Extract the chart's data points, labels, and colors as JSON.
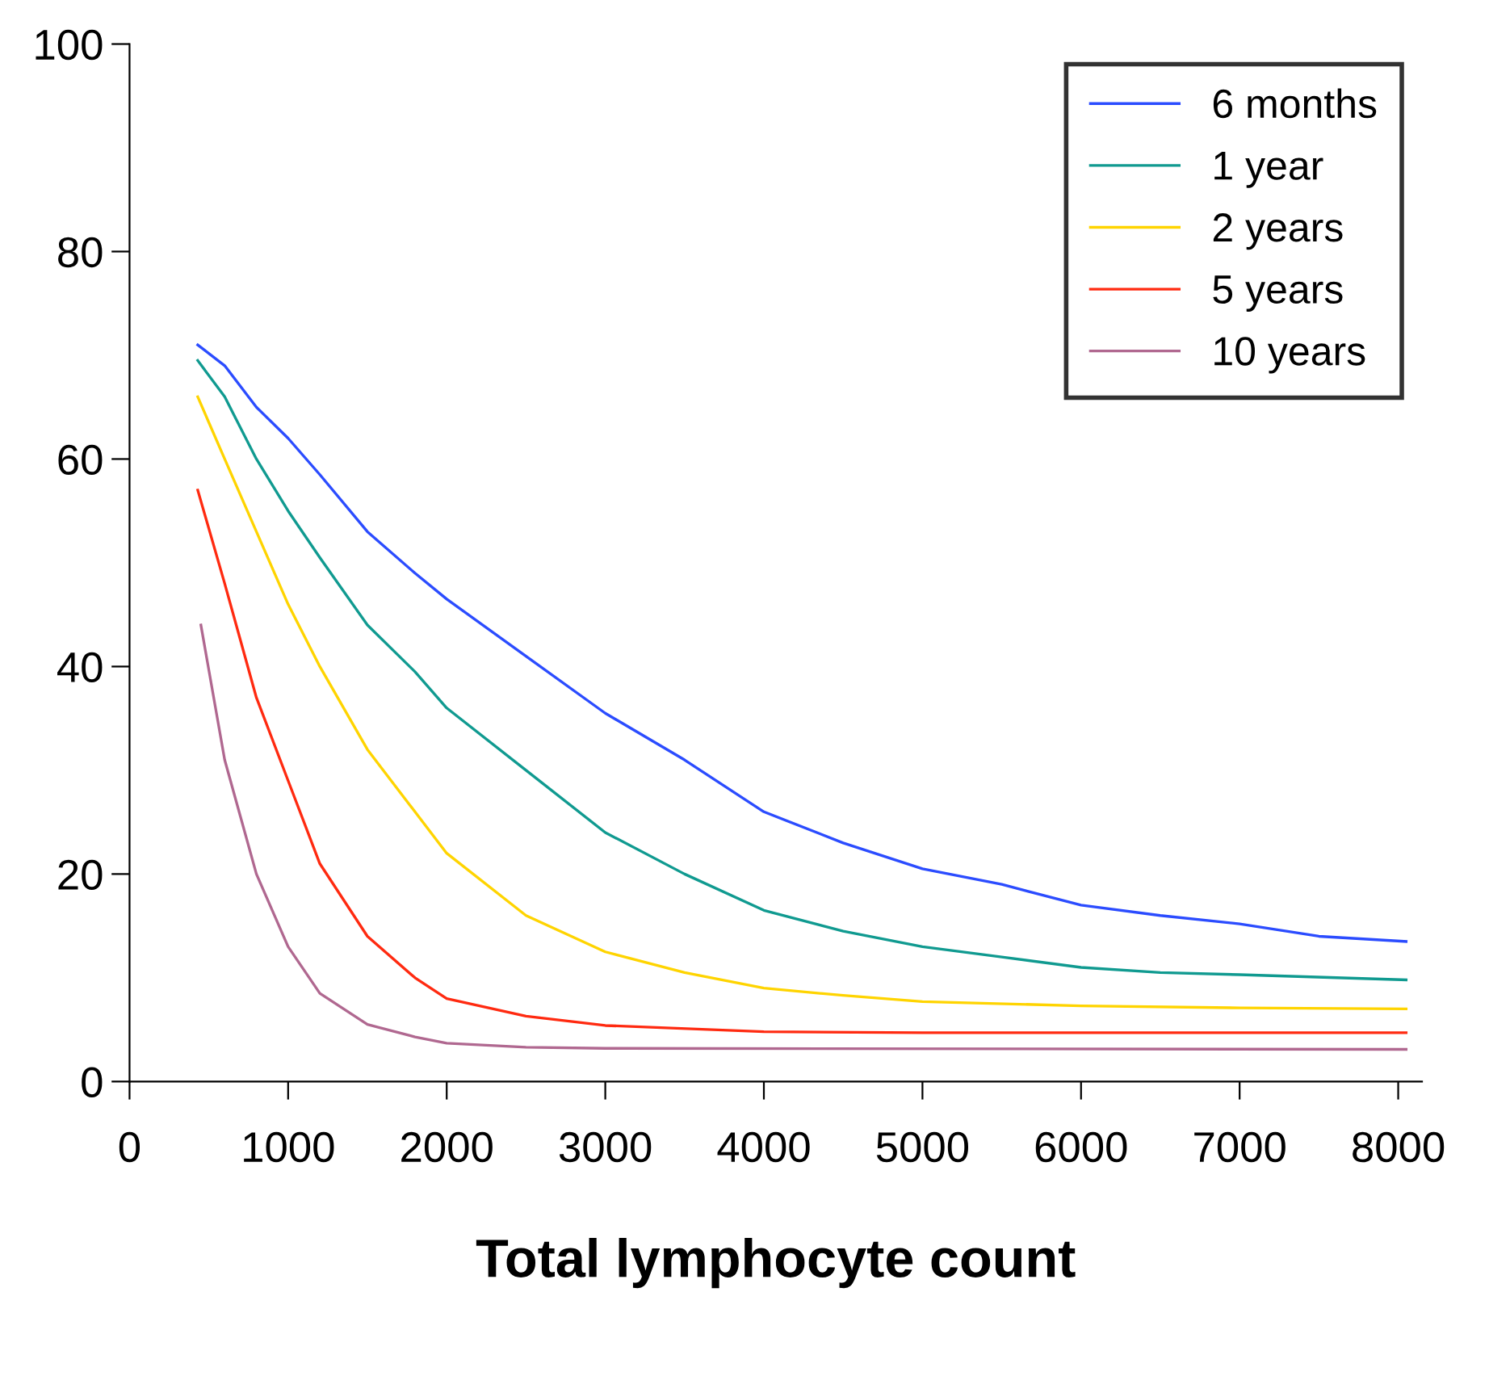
{
  "chart_data": {
    "type": "line",
    "xlabel": "Total lymphocyte count",
    "xlim": [
      0,
      8150
    ],
    "xticks": [
      0,
      1000,
      2000,
      3000,
      4000,
      5000,
      6000,
      7000,
      8000
    ],
    "ylim": [
      0,
      100
    ],
    "yticks": [
      0,
      20,
      40,
      60,
      80,
      100
    ],
    "grid": false,
    "legend": "top right",
    "marker": "none",
    "line_style": "solid",
    "series": [
      {
        "name": "6 months",
        "color": "#2b4cff",
        "x": [
          430,
          600,
          800,
          1000,
          1200,
          1500,
          1800,
          2000,
          2500,
          3000,
          3500,
          4000,
          4500,
          5000,
          5500,
          6000,
          6500,
          7000,
          7500,
          8050
        ],
        "values": [
          71,
          69,
          65,
          62,
          58.5,
          53,
          49,
          46.5,
          41,
          35.5,
          31,
          26,
          23,
          20.5,
          19,
          17,
          16,
          15.2,
          14,
          13.5
        ]
      },
      {
        "name": "1 year",
        "color": "#109a90",
        "x": [
          430,
          600,
          800,
          1000,
          1200,
          1500,
          1800,
          2000,
          2500,
          3000,
          3500,
          4000,
          4500,
          5000,
          5500,
          6000,
          6500,
          7000,
          8050
        ],
        "values": [
          69.5,
          66,
          60,
          55,
          50.5,
          44,
          39.5,
          36,
          30,
          24,
          20,
          16.5,
          14.5,
          13,
          12,
          11,
          10.5,
          10.3,
          9.8
        ]
      },
      {
        "name": "2 years",
        "color": "#ffd400",
        "x": [
          430,
          600,
          800,
          1000,
          1200,
          1500,
          1800,
          2000,
          2500,
          3000,
          3500,
          4000,
          4500,
          5000,
          6000,
          7000,
          8050
        ],
        "values": [
          66,
          60,
          53,
          46,
          40,
          32,
          26,
          22,
          16,
          12.5,
          10.5,
          9,
          8.3,
          7.7,
          7.3,
          7.1,
          7
        ]
      },
      {
        "name": "5 years",
        "color": "#ff2a10",
        "x": [
          430,
          600,
          800,
          1000,
          1200,
          1500,
          1800,
          2000,
          2500,
          3000,
          4000,
          5000,
          6000,
          8050
        ],
        "values": [
          57,
          48,
          37,
          29,
          21,
          14,
          10,
          8,
          6.3,
          5.4,
          4.8,
          4.7,
          4.7,
          4.7
        ]
      },
      {
        "name": "10 years",
        "color": "#b06890",
        "x": [
          450,
          600,
          800,
          1000,
          1200,
          1500,
          1800,
          2000,
          2500,
          3000,
          8050
        ],
        "values": [
          44,
          31,
          20,
          13,
          8.5,
          5.5,
          4.3,
          3.7,
          3.3,
          3.2,
          3.1
        ]
      }
    ]
  }
}
